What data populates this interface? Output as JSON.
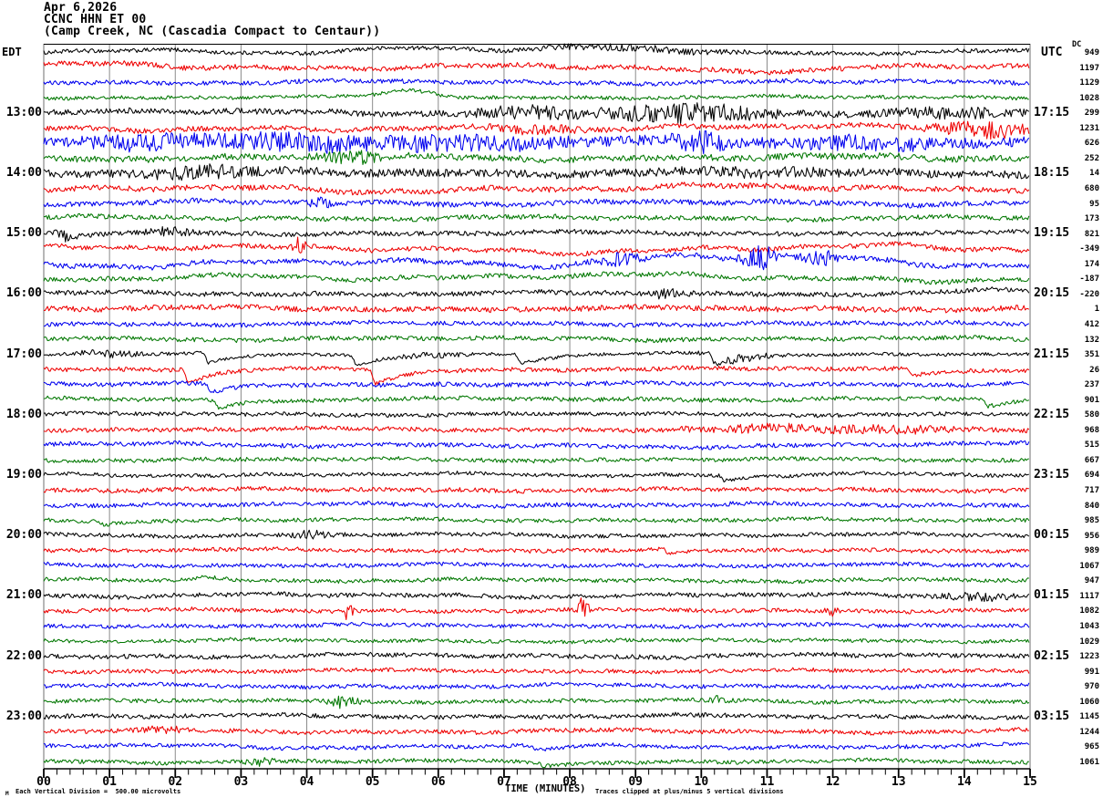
{
  "header": {
    "date": "Apr 6,2026",
    "station": "CCNC HHN ET 00",
    "location": "(Camp Creek, NC (Cascadia Compact to Centaur))"
  },
  "axes": {
    "left_timezone": "EDT",
    "right_timezone": "UTC",
    "dc_header": "DC",
    "x_label": "TIME (MINUTES)",
    "minute_labels": [
      "00",
      "01",
      "02",
      "03",
      "04",
      "05",
      "06",
      "07",
      "08",
      "09",
      "10",
      "11",
      "12",
      "13",
      "14",
      "15"
    ]
  },
  "footer": {
    "logo_glyph": "M",
    "scale_note": "Each Vertical Division =  500.00 microvolts",
    "clip_note": "Traces clipped at plus/minus 5 vertical divisions"
  },
  "chart_data": {
    "type": "line",
    "title": "CCNC HHN ET 00 helicorder record, Apr 6,2026",
    "xlabel": "TIME (MINUTES)",
    "x_axis": {
      "min": 0,
      "max": 15,
      "major_tick_step": 1,
      "minor_tick_step": 0.2
    },
    "row_duration_minutes": 15,
    "first_row_start_edt": "12:00",
    "utc_offset_hours": 4,
    "microvolts_per_division": 500.0,
    "clip_divisions": 5,
    "grid": true,
    "grid_color": "#8a8a8a",
    "colors": {
      "black": "#000000",
      "red": "#ee0000",
      "blue": "#0000ee",
      "green": "#007700"
    },
    "color_cycle": [
      "black",
      "red",
      "blue",
      "green"
    ],
    "rows": [
      {
        "edt": "",
        "utc": "",
        "dc": 949,
        "c": 0,
        "a": 2.2,
        "w": 2.5,
        "ev": [
          [
            9,
            1.5,
            2
          ]
        ],
        "humps": [
          [
            5.7,
            1.0,
            6
          ],
          [
            8.6,
            1.2,
            4
          ]
        ],
        "dips": []
      },
      {
        "edt": "",
        "utc": "",
        "dc": 1197,
        "c": 1,
        "a": 2.8,
        "w": 3.0,
        "ev": [],
        "humps": [
          [
            1.2,
            0.8,
            3
          ],
          [
            10.5,
            1.5,
            -3
          ]
        ],
        "dips": []
      },
      {
        "edt": "",
        "utc": "",
        "dc": 1129,
        "c": 2,
        "a": 2.4,
        "w": 2.0,
        "ev": [],
        "humps": [],
        "dips": []
      },
      {
        "edt": "",
        "utc": "",
        "dc": 1028,
        "c": 3,
        "a": 2.0,
        "w": 1.5,
        "ev": [],
        "humps": [
          [
            5.6,
            0.5,
            7
          ]
        ],
        "dips": []
      },
      {
        "edt": "13:00",
        "utc": "17:15",
        "dc": 299,
        "c": 0,
        "a": 3.2,
        "w": 2.5,
        "ev": [
          [
            7.3,
            0.8,
            5
          ],
          [
            9.7,
            1.2,
            9
          ],
          [
            13.8,
            1.0,
            4
          ]
        ],
        "humps": [
          [
            9.7,
            1.5,
            -3
          ]
        ],
        "dips": []
      },
      {
        "edt": "",
        "utc": "",
        "dc": 1231,
        "c": 1,
        "a": 2.8,
        "w": 3.5,
        "ev": [
          [
            7.5,
            0.6,
            4
          ],
          [
            14.3,
            0.8,
            7
          ]
        ],
        "humps": [
          [
            4.2,
            1.5,
            -4
          ]
        ],
        "dips": []
      },
      {
        "edt": "",
        "utc": "",
        "dc": 626,
        "c": 2,
        "a": 5.5,
        "w": 3.0,
        "ev": [
          [
            1.5,
            0.8,
            5
          ],
          [
            3.8,
            1.2,
            6
          ],
          [
            6.3,
            1.2,
            5
          ],
          [
            10,
            0.4,
            8
          ],
          [
            12.5,
            1,
            4
          ]
        ],
        "humps": [],
        "dips": []
      },
      {
        "edt": "",
        "utc": "",
        "dc": 252,
        "c": 3,
        "a": 3.5,
        "w": 2.5,
        "ev": [
          [
            4.7,
            0.4,
            5
          ]
        ],
        "humps": [],
        "dips": []
      },
      {
        "edt": "14:00",
        "utc": "18:15",
        "dc": 14,
        "c": 0,
        "a": 4.5,
        "w": 2.5,
        "ev": [
          [
            2.5,
            0.8,
            4
          ],
          [
            11,
            0.8,
            3
          ]
        ],
        "humps": [],
        "dips": []
      },
      {
        "edt": "",
        "utc": "",
        "dc": 680,
        "c": 1,
        "a": 3.0,
        "w": 3.5,
        "ev": [],
        "humps": [
          [
            4.5,
            1.2,
            -5
          ]
        ],
        "dips": []
      },
      {
        "edt": "",
        "utc": "",
        "dc": 95,
        "c": 2,
        "a": 2.8,
        "w": 2.5,
        "ev": [
          [
            4.2,
            0.15,
            6
          ]
        ],
        "humps": [],
        "dips": []
      },
      {
        "edt": "",
        "utc": "",
        "dc": 173,
        "c": 3,
        "a": 2.6,
        "w": 2.0,
        "ev": [],
        "humps": [],
        "dips": []
      },
      {
        "edt": "15:00",
        "utc": "19:15",
        "dc": 821,
        "c": 0,
        "a": 2.6,
        "w": 2.0,
        "ev": [
          [
            0.35,
            0.1,
            8
          ],
          [
            1.9,
            0.3,
            4
          ]
        ],
        "humps": [],
        "dips": [
          [
            0.3,
            6
          ]
        ]
      },
      {
        "edt": "",
        "utc": "",
        "dc": -349,
        "c": 1,
        "a": 2.6,
        "w": 4.5,
        "ev": [
          [
            3.9,
            0.08,
            12
          ]
        ],
        "humps": [
          [
            2.0,
            1.5,
            4
          ],
          [
            6.5,
            2,
            -4
          ]
        ],
        "dips": []
      },
      {
        "edt": "",
        "utc": "",
        "dc": 174,
        "c": 2,
        "a": 2.8,
        "w": 5.0,
        "ev": [
          [
            10.9,
            0.25,
            12
          ],
          [
            11.8,
            0.2,
            10
          ],
          [
            8.8,
            0.3,
            6
          ]
        ],
        "humps": [
          [
            9.3,
            1.2,
            6
          ],
          [
            11,
            1.5,
            4
          ]
        ],
        "dips": []
      },
      {
        "edt": "",
        "utc": "",
        "dc": -187,
        "c": 3,
        "a": 2.6,
        "w": 4.0,
        "ev": [],
        "humps": [
          [
            7.5,
            2,
            4
          ]
        ],
        "dips": []
      },
      {
        "edt": "16:00",
        "utc": "20:15",
        "dc": -220,
        "c": 0,
        "a": 2.6,
        "w": 2.0,
        "ev": [
          [
            9.5,
            0.25,
            5
          ]
        ],
        "humps": [
          [
            14.5,
            0.8,
            3
          ]
        ],
        "dips": []
      },
      {
        "edt": "",
        "utc": "",
        "dc": 1,
        "c": 1,
        "a": 3.0,
        "w": 2.0,
        "ev": [],
        "humps": [],
        "dips": []
      },
      {
        "edt": "",
        "utc": "",
        "dc": 412,
        "c": 2,
        "a": 2.4,
        "w": 1.8,
        "ev": [],
        "humps": [],
        "dips": []
      },
      {
        "edt": "",
        "utc": "",
        "dc": 132,
        "c": 3,
        "a": 2.4,
        "w": 1.8,
        "ev": [],
        "humps": [],
        "dips": []
      },
      {
        "edt": "17:00",
        "utc": "21:15",
        "dc": 351,
        "c": 0,
        "a": 1.8,
        "w": 1.2,
        "ev": [
          [
            0.9,
            0.5,
            3
          ],
          [
            10.6,
            0.5,
            3
          ],
          [
            5.9,
            0.4,
            2
          ]
        ],
        "humps": [],
        "dips": [
          [
            2.5,
            11
          ],
          [
            4.75,
            12
          ],
          [
            7.25,
            10
          ],
          [
            10.2,
            11
          ]
        ]
      },
      {
        "edt": "",
        "utc": "",
        "dc": 26,
        "c": 1,
        "a": 2.4,
        "w": 1.5,
        "ev": [],
        "humps": [],
        "dips": [
          [
            2.2,
            15
          ],
          [
            5.05,
            16
          ],
          [
            13.2,
            7
          ]
        ]
      },
      {
        "edt": "",
        "utc": "",
        "dc": 237,
        "c": 2,
        "a": 2.4,
        "w": 1.5,
        "ev": [],
        "humps": [],
        "dips": [
          [
            2.55,
            10
          ]
        ]
      },
      {
        "edt": "",
        "utc": "",
        "dc": 901,
        "c": 3,
        "a": 2.4,
        "w": 1.5,
        "ev": [],
        "humps": [],
        "dips": [
          [
            2.65,
            9
          ],
          [
            14.35,
            8
          ]
        ]
      },
      {
        "edt": "18:00",
        "utc": "22:15",
        "dc": 580,
        "c": 0,
        "a": 2.2,
        "w": 1.5,
        "ev": [],
        "humps": [],
        "dips": []
      },
      {
        "edt": "",
        "utc": "",
        "dc": 968,
        "c": 1,
        "a": 2.4,
        "w": 1.5,
        "ev": [
          [
            11,
            1.2,
            3
          ],
          [
            13,
            1,
            3
          ]
        ],
        "humps": [],
        "dips": []
      },
      {
        "edt": "",
        "utc": "",
        "dc": 515,
        "c": 2,
        "a": 2.4,
        "w": 2.0,
        "ev": [],
        "humps": [
          [
            8.5,
            2,
            -3
          ]
        ],
        "dips": []
      },
      {
        "edt": "",
        "utc": "",
        "dc": 667,
        "c": 3,
        "a": 2.2,
        "w": 1.5,
        "ev": [],
        "humps": [],
        "dips": []
      },
      {
        "edt": "19:00",
        "utc": "23:15",
        "dc": 694,
        "c": 0,
        "a": 2.0,
        "w": 1.8,
        "ev": [],
        "humps": [],
        "dips": [
          [
            10.35,
            6
          ]
        ]
      },
      {
        "edt": "",
        "utc": "",
        "dc": 717,
        "c": 1,
        "a": 2.4,
        "w": 1.5,
        "ev": [],
        "humps": [],
        "dips": []
      },
      {
        "edt": "",
        "utc": "",
        "dc": 840,
        "c": 2,
        "a": 2.4,
        "w": 1.8,
        "ev": [],
        "humps": [],
        "dips": []
      },
      {
        "edt": "",
        "utc": "",
        "dc": 985,
        "c": 3,
        "a": 2.2,
        "w": 1.5,
        "ev": [],
        "humps": [],
        "dips": [
          [
            0.9,
            4
          ]
        ]
      },
      {
        "edt": "20:00",
        "utc": "00:15",
        "dc": 956,
        "c": 0,
        "a": 2.2,
        "w": 1.8,
        "ev": [
          [
            4.1,
            0.3,
            3
          ]
        ],
        "humps": [],
        "dips": []
      },
      {
        "edt": "",
        "utc": "",
        "dc": 989,
        "c": 1,
        "a": 2.2,
        "w": 1.5,
        "ev": [],
        "humps": [],
        "dips": [
          [
            9.5,
            5
          ]
        ]
      },
      {
        "edt": "",
        "utc": "",
        "dc": 1067,
        "c": 2,
        "a": 2.2,
        "w": 1.5,
        "ev": [],
        "humps": [],
        "dips": []
      },
      {
        "edt": "",
        "utc": "",
        "dc": 947,
        "c": 3,
        "a": 2.2,
        "w": 1.5,
        "ev": [],
        "humps": [
          [
            2.5,
            0.4,
            4
          ]
        ],
        "dips": []
      },
      {
        "edt": "21:00",
        "utc": "01:15",
        "dc": 1117,
        "c": 0,
        "a": 2.4,
        "w": 2.0,
        "ev": [
          [
            14.2,
            0.5,
            3
          ]
        ],
        "humps": [],
        "dips": []
      },
      {
        "edt": "",
        "utc": "",
        "dc": 1082,
        "c": 1,
        "a": 2.2,
        "w": 1.5,
        "ev": [
          [
            4.6,
            0.1,
            7
          ],
          [
            8.2,
            0.08,
            12
          ],
          [
            12.0,
            0.1,
            5
          ]
        ],
        "humps": [],
        "dips": []
      },
      {
        "edt": "",
        "utc": "",
        "dc": 1043,
        "c": 2,
        "a": 2.2,
        "w": 1.5,
        "ev": [],
        "humps": [],
        "dips": []
      },
      {
        "edt": "",
        "utc": "",
        "dc": 1029,
        "c": 3,
        "a": 2.0,
        "w": 1.5,
        "ev": [],
        "humps": [],
        "dips": []
      },
      {
        "edt": "22:00",
        "utc": "02:15",
        "dc": 1223,
        "c": 0,
        "a": 2.4,
        "w": 2.2,
        "ev": [],
        "humps": [],
        "dips": []
      },
      {
        "edt": "",
        "utc": "",
        "dc": 991,
        "c": 1,
        "a": 2.2,
        "w": 1.5,
        "ev": [],
        "humps": [],
        "dips": []
      },
      {
        "edt": "",
        "utc": "",
        "dc": 970,
        "c": 2,
        "a": 2.2,
        "w": 2.0,
        "ev": [],
        "humps": [],
        "dips": []
      },
      {
        "edt": "",
        "utc": "",
        "dc": 1060,
        "c": 3,
        "a": 2.2,
        "w": 1.5,
        "ev": [
          [
            4.55,
            0.2,
            6
          ],
          [
            10.3,
            0.2,
            4
          ]
        ],
        "humps": [],
        "dips": []
      },
      {
        "edt": "23:00",
        "utc": "03:15",
        "dc": 1145,
        "c": 0,
        "a": 2.4,
        "w": 1.8,
        "ev": [],
        "humps": [],
        "dips": []
      },
      {
        "edt": "",
        "utc": "",
        "dc": 1244,
        "c": 1,
        "a": 2.4,
        "w": 2.0,
        "ev": [
          [
            1.8,
            0.3,
            3
          ]
        ],
        "humps": [],
        "dips": []
      },
      {
        "edt": "",
        "utc": "",
        "dc": 965,
        "c": 2,
        "a": 2.2,
        "w": 2.5,
        "ev": [],
        "humps": [],
        "dips": [
          [
            7.5,
            5
          ]
        ]
      },
      {
        "edt": "",
        "utc": "",
        "dc": 1061,
        "c": 3,
        "a": 2.2,
        "w": 1.8,
        "ev": [
          [
            3.3,
            0.2,
            3
          ]
        ],
        "humps": [],
        "dips": [
          [
            7.6,
            4
          ]
        ]
      }
    ]
  }
}
